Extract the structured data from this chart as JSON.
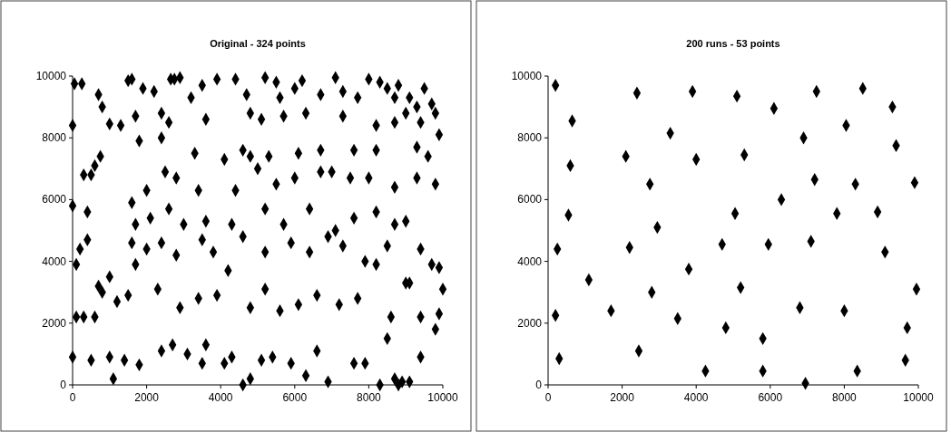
{
  "chart_data": [
    {
      "type": "scatter",
      "title": "Original - 324 points",
      "marker": "diamond",
      "xlim": [
        0,
        10000
      ],
      "ylim": [
        0,
        10000
      ],
      "xticks": [
        0,
        2000,
        4000,
        6000,
        8000,
        10000
      ],
      "yticks": [
        0,
        2000,
        4000,
        6000,
        8000,
        10000
      ],
      "series": [
        {
          "color": "#000000",
          "x": [
            50,
            250,
            1500,
            1600,
            2650,
            2900,
            2750,
            3500,
            3900,
            4400,
            5200,
            5500,
            6200,
            7100,
            8000,
            8300,
            8500,
            8800,
            9500,
            9700,
            1900,
            2200,
            3200,
            4700,
            5600,
            6000,
            6700,
            7300,
            7700,
            8700,
            9100,
            9300,
            9000,
            9800,
            0,
            700,
            800,
            1000,
            1300,
            1700,
            2400,
            2600,
            3600,
            4800,
            5100,
            5700,
            6300,
            7300,
            8200,
            8700,
            9400,
            9900,
            1800,
            2400,
            3300,
            4600,
            5300,
            6100,
            6700,
            7600,
            8200,
            9300,
            9600,
            300,
            600,
            750,
            500,
            400,
            0,
            1600,
            2000,
            2500,
            2800,
            3400,
            4100,
            4400,
            4800,
            5000,
            5500,
            6000,
            6700,
            7000,
            7500,
            8000,
            8700,
            9300,
            9800,
            1700,
            2100,
            2600,
            3000,
            3600,
            4300,
            5200,
            5700,
            6400,
            7100,
            7600,
            8200,
            8700,
            9000,
            9400,
            100,
            200,
            400,
            700,
            800,
            1000,
            1600,
            1700,
            2000,
            2400,
            2800,
            3500,
            3800,
            4200,
            4600,
            5200,
            5900,
            6400,
            6900,
            7300,
            7900,
            8200,
            8500,
            9000,
            9700,
            9900,
            1200,
            1500,
            2300,
            2900,
            3400,
            3900,
            4800,
            5200,
            5600,
            6100,
            6600,
            7200,
            7700,
            8600,
            9100,
            9400,
            0,
            100,
            300,
            500,
            600,
            1000,
            1100,
            1400,
            1800,
            2400,
            2700,
            3100,
            3500,
            3600,
            4100,
            4300,
            4600,
            4800,
            5100,
            5400,
            5900,
            6300,
            6600,
            6900,
            7600,
            7900,
            8300,
            8500,
            8700,
            8800,
            8900,
            9100,
            9400,
            9800,
            9900,
            10000
          ],
          "values": [
            9750,
            9750,
            9850,
            9900,
            9900,
            9950,
            9900,
            9700,
            9900,
            9900,
            9950,
            9800,
            9850,
            9950,
            9900,
            9800,
            9600,
            9700,
            9600,
            9100,
            9600,
            9500,
            9300,
            9400,
            9300,
            9600,
            9400,
            9500,
            9300,
            9300,
            9300,
            9000,
            8800,
            8800,
            8400,
            9400,
            9000,
            8450,
            8400,
            8700,
            8800,
            8500,
            8600,
            8800,
            8600,
            8700,
            8800,
            8700,
            8400,
            8500,
            8500,
            8100,
            7900,
            8000,
            7500,
            7600,
            7400,
            7500,
            7600,
            7600,
            7600,
            7700,
            7400,
            6800,
            7100,
            7400,
            6800,
            5600,
            5800,
            5900,
            6300,
            6900,
            6700,
            6300,
            7300,
            6300,
            7400,
            7000,
            6500,
            6700,
            6900,
            6900,
            6700,
            6700,
            6400,
            6700,
            6500,
            5200,
            5400,
            5700,
            5200,
            5300,
            5200,
            5700,
            5200,
            5700,
            5000,
            5400,
            5600,
            5200,
            5300,
            4400,
            3900,
            4400,
            4700,
            3200,
            3000,
            3500,
            4600,
            3900,
            4400,
            4600,
            4200,
            4700,
            4300,
            3700,
            4800,
            4300,
            4600,
            4300,
            4800,
            4500,
            4000,
            3900,
            4500,
            3300,
            3900,
            3800,
            2700,
            2900,
            3100,
            2500,
            2800,
            2900,
            2500,
            3100,
            2400,
            2600,
            2900,
            2600,
            2800,
            2200,
            3300,
            2200,
            900,
            2200,
            2200,
            800,
            2200,
            900,
            200,
            800,
            650,
            1100,
            1300,
            1000,
            700,
            1300,
            700,
            900,
            0,
            200,
            800,
            900,
            700,
            300,
            1100,
            100,
            700,
            700,
            0,
            1500,
            200,
            0,
            100,
            100,
            900,
            1800,
            2300,
            3100
          ]
        }
      ]
    },
    {
      "type": "scatter",
      "title": "200 runs - 53 points",
      "marker": "diamond",
      "xlim": [
        0,
        10000
      ],
      "ylim": [
        0,
        10000
      ],
      "xticks": [
        0,
        2000,
        4000,
        6000,
        8000,
        10000
      ],
      "yticks": [
        0,
        2000,
        4000,
        6000,
        8000,
        10000
      ],
      "series": [
        {
          "color": "#000000",
          "x": [
            200,
            250,
            200,
            300,
            550,
            600,
            650,
            1100,
            1700,
            2100,
            2200,
            2400,
            2450,
            2750,
            2800,
            2950,
            3300,
            3500,
            3800,
            3900,
            4000,
            4250,
            4700,
            4800,
            5050,
            5100,
            5200,
            5300,
            5800,
            5800,
            5950,
            6100,
            6300,
            6800,
            6900,
            6950,
            7100,
            7200,
            7250,
            7800,
            8000,
            8050,
            8300,
            8350,
            8500,
            8900,
            9100,
            9300,
            9400,
            9700,
            9650,
            9900,
            9950
          ],
          "values": [
            9700,
            4400,
            2250,
            850,
            5500,
            7100,
            8550,
            3400,
            2400,
            7400,
            4450,
            9450,
            1100,
            6500,
            3000,
            5100,
            8150,
            2150,
            3750,
            9500,
            7300,
            450,
            4550,
            1850,
            5550,
            9350,
            3150,
            7450,
            1500,
            450,
            4550,
            8950,
            6000,
            2500,
            8000,
            50,
            4650,
            6650,
            9500,
            5550,
            2400,
            8400,
            6500,
            450,
            9600,
            5600,
            4300,
            9000,
            7750,
            1850,
            800,
            6550,
            3100
          ]
        }
      ]
    }
  ]
}
